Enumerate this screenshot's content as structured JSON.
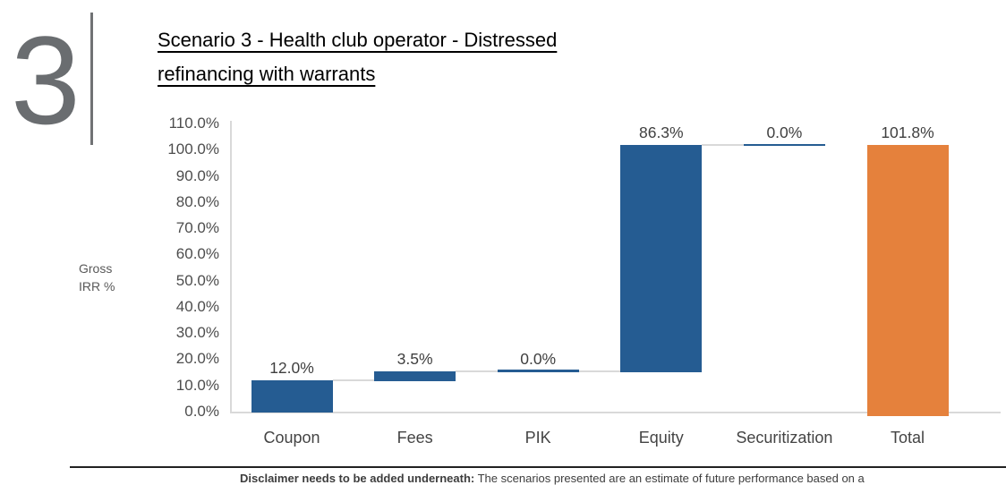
{
  "page": {
    "slide_number": "3",
    "title_line1": "Scenario 3 - Health club operator - Distressed",
    "title_line2": "refinancing with warrants"
  },
  "chart_data": {
    "type": "bar",
    "subtype": "waterfall",
    "title": "Scenario 3 - Health club operator - Distressed refinancing with warrants",
    "ylabel": "Gross IRR %",
    "ylabel_lines": [
      "Gross",
      "IRR %"
    ],
    "ylim": [
      0,
      110
    ],
    "ytick_step": 10,
    "yticks": [
      "110.0%",
      "100.0%",
      "90.0%",
      "80.0%",
      "70.0%",
      "60.0%",
      "50.0%",
      "40.0%",
      "30.0%",
      "20.0%",
      "10.0%",
      "0.0%"
    ],
    "categories": [
      "Coupon",
      "Fees",
      "PIK",
      "Equity",
      "Securitization",
      "Total"
    ],
    "values": [
      12.0,
      3.5,
      0.0,
      86.3,
      0.0,
      101.8
    ],
    "labels": [
      "12.0%",
      "3.5%",
      "0.0%",
      "86.3%",
      "0.0%",
      "101.8%"
    ],
    "bars": [
      {
        "category": "Coupon",
        "label": "12.0%",
        "value": 12.0,
        "start": 0,
        "end": 12.0,
        "style": "increase",
        "connector_to_next": true
      },
      {
        "category": "Fees",
        "label": "3.5%",
        "value": 3.5,
        "start": 12.0,
        "end": 15.5,
        "style": "increase",
        "connector_to_next": true
      },
      {
        "category": "PIK",
        "label": "0.0%",
        "value": 0.0,
        "start": 15.5,
        "end": 15.5,
        "style": "zero",
        "connector_to_next": true
      },
      {
        "category": "Equity",
        "label": "86.3%",
        "value": 86.3,
        "start": 15.5,
        "end": 101.8,
        "style": "increase",
        "connector_to_next": true
      },
      {
        "category": "Securitization",
        "label": "0.0%",
        "value": 0.0,
        "start": 101.8,
        "end": 101.8,
        "style": "zero",
        "connector_to_next": false
      },
      {
        "category": "Total",
        "label": "101.8%",
        "value": 101.8,
        "start": 0,
        "end": 101.8,
        "style": "total",
        "connector_to_next": false
      }
    ],
    "colors": {
      "increase": "#255c92",
      "zero": "#255c92",
      "total": "#e5813c",
      "connector": "#d9d9d9",
      "axis": "#d9d9d9"
    },
    "legend": "none",
    "gridlines": false
  },
  "footer": {
    "disclaimer_bold": "Disclaimer needs to be added underneath:",
    "disclaimer_text": " The scenarios presented are an estimate of future performance based on a"
  }
}
